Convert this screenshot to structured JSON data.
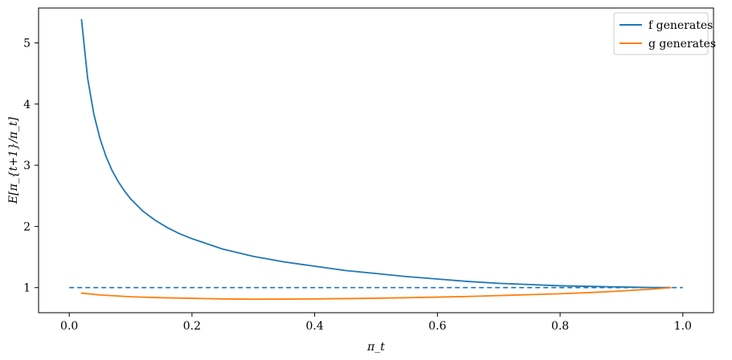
{
  "chart_data": {
    "type": "line",
    "xlabel": "π_t",
    "ylabel": "E[π_{t+1}/π_t]",
    "xlim": [
      -0.05,
      1.05
    ],
    "ylim": [
      0.59,
      5.57
    ],
    "xticks": [
      0.0,
      0.2,
      0.4,
      0.6,
      0.8,
      1.0
    ],
    "xtick_labels": [
      "0.0",
      "0.2",
      "0.4",
      "0.6",
      "0.8",
      "1.0"
    ],
    "yticks": [
      1,
      2,
      3,
      4,
      5
    ],
    "ytick_labels": [
      "1",
      "2",
      "3",
      "4",
      "5"
    ],
    "grid": false,
    "legend_position": "top-right",
    "reference_line": {
      "y": 1,
      "x_range": [
        0,
        1
      ],
      "style": "dashed",
      "color": "#1f77b4"
    },
    "series": [
      {
        "name": "f generates",
        "color": "#1f77b4",
        "x": [
          0.02,
          0.03,
          0.04,
          0.05,
          0.06,
          0.07,
          0.08,
          0.09,
          0.1,
          0.12,
          0.14,
          0.16,
          0.18,
          0.2,
          0.25,
          0.3,
          0.35,
          0.4,
          0.45,
          0.5,
          0.55,
          0.6,
          0.65,
          0.7,
          0.75,
          0.8,
          0.85,
          0.9,
          0.95,
          0.98
        ],
        "y": [
          5.38,
          4.42,
          3.84,
          3.44,
          3.14,
          2.91,
          2.73,
          2.58,
          2.45,
          2.25,
          2.1,
          1.98,
          1.88,
          1.8,
          1.63,
          1.51,
          1.42,
          1.35,
          1.28,
          1.23,
          1.18,
          1.14,
          1.1,
          1.07,
          1.05,
          1.03,
          1.02,
          1.01,
          1.0,
          1.0
        ]
      },
      {
        "name": "g generates",
        "color": "#ff7f0e",
        "x": [
          0.02,
          0.05,
          0.1,
          0.15,
          0.2,
          0.25,
          0.3,
          0.35,
          0.4,
          0.45,
          0.5,
          0.55,
          0.6,
          0.65,
          0.7,
          0.75,
          0.8,
          0.85,
          0.9,
          0.95,
          0.98
        ],
        "y": [
          0.91,
          0.88,
          0.85,
          0.835,
          0.825,
          0.815,
          0.81,
          0.812,
          0.815,
          0.82,
          0.827,
          0.835,
          0.845,
          0.855,
          0.87,
          0.885,
          0.9,
          0.92,
          0.945,
          0.975,
          1.0
        ]
      }
    ]
  }
}
